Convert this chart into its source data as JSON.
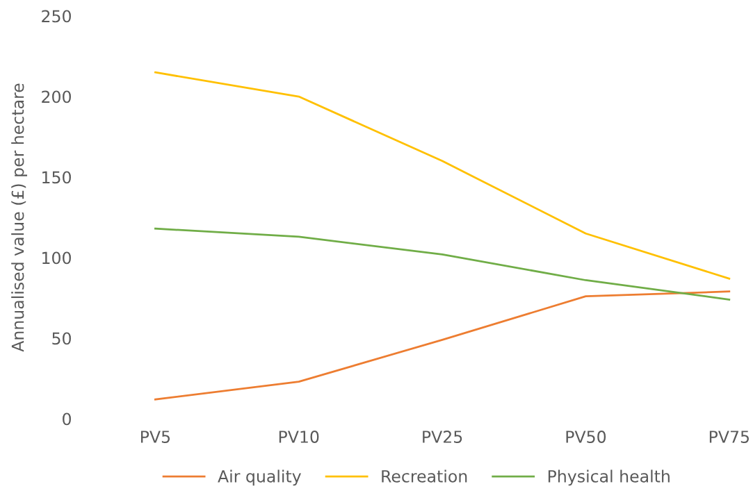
{
  "chart_data": {
    "type": "line",
    "ylabel": "Annualised value (£) per hectare",
    "categories": [
      "PV5",
      "PV10",
      "PV25",
      "PV50",
      "PV75"
    ],
    "series": [
      {
        "name": "Air quality",
        "color": "#ed7d31",
        "values": [
          12,
          23,
          49,
          76,
          79
        ]
      },
      {
        "name": "Recreation",
        "color": "#ffc000",
        "values": [
          215,
          200,
          160,
          115,
          87
        ]
      },
      {
        "name": "Physical health",
        "color": "#70ad47",
        "values": [
          118,
          113,
          102,
          86,
          74
        ]
      }
    ],
    "ylim": [
      0,
      250
    ],
    "yticks": [
      0,
      50,
      100,
      150,
      200,
      250
    ],
    "grid": false,
    "legend": "bottom",
    "marker": "none",
    "line_style": "solid"
  }
}
